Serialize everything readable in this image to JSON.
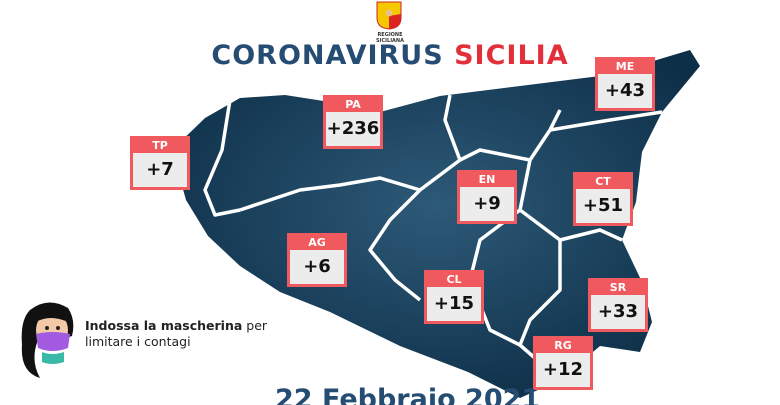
{
  "header": {
    "logo_text": "REGIONE SICILIANA",
    "title_part1": "CORONAVIRUS",
    "title_part2": "SICILIA"
  },
  "colors": {
    "title_blue": "#254c73",
    "title_red": "#e2303a",
    "badge_red": "#f0595d",
    "map": "#123a57"
  },
  "provinces": [
    {
      "code": "TP",
      "value": "+7"
    },
    {
      "code": "PA",
      "value": "+236"
    },
    {
      "code": "ME",
      "value": "+43"
    },
    {
      "code": "EN",
      "value": "+9"
    },
    {
      "code": "CT",
      "value": "+51"
    },
    {
      "code": "AG",
      "value": "+6"
    },
    {
      "code": "CL",
      "value": "+15"
    },
    {
      "code": "SR",
      "value": "+33"
    },
    {
      "code": "RG",
      "value": "+12"
    }
  ],
  "note": {
    "bold": "Indossa la mascherina",
    "rest1": "per",
    "rest2": "limitare i contagi",
    "icon": "woman-with-mask-icon"
  },
  "date": "22 Febbraio 2021"
}
